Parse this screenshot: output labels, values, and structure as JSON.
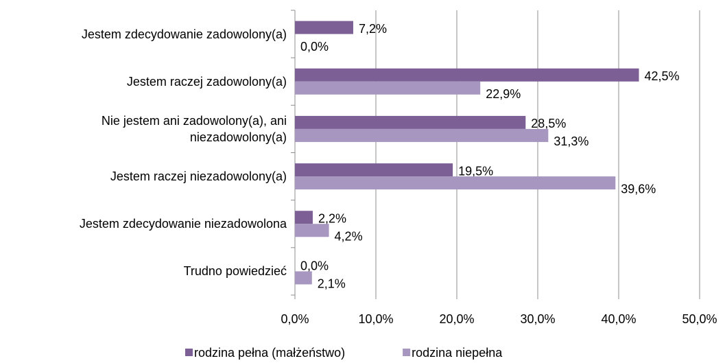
{
  "chart_data": {
    "type": "bar",
    "orientation": "horizontal",
    "categories": [
      "Jestem zdecydowanie zadowolony(a)",
      "Jestem raczej zadowolony(a)",
      "Nie jestem ani zadowolony(a), ani niezadowolony(a)",
      "Jestem raczej niezadowolony(a)",
      "Jestem zdecydowanie niezadowolona",
      "Trudno powiedzieć"
    ],
    "series": [
      {
        "name": "rodzina pełna (małżeństwo)",
        "color": "#7b5f95",
        "values": [
          7.2,
          42.5,
          28.5,
          19.5,
          2.2,
          0.0
        ],
        "value_labels": [
          "7,2%",
          "42,5%",
          "28,5%",
          "19,5%",
          "2,2%",
          "0,0%"
        ]
      },
      {
        "name": "rodzina niepełna",
        "color": "#a796bf",
        "values": [
          0.0,
          22.9,
          31.3,
          39.6,
          4.2,
          2.1
        ],
        "value_labels": [
          "0,0%",
          "22,9%",
          "31,3%",
          "39,6%",
          "4,2%",
          "2,1%"
        ]
      }
    ],
    "xlim": [
      0,
      50
    ],
    "xticks": [
      {
        "value": 0,
        "label": "0,0%"
      },
      {
        "value": 10,
        "label": "10,0%"
      },
      {
        "value": 20,
        "label": "20,0%"
      },
      {
        "value": 30,
        "label": "30,0%"
      },
      {
        "value": 40,
        "label": "40,0%"
      },
      {
        "value": 50,
        "label": "50,0%"
      }
    ],
    "grid": true,
    "legend": "bottom"
  }
}
